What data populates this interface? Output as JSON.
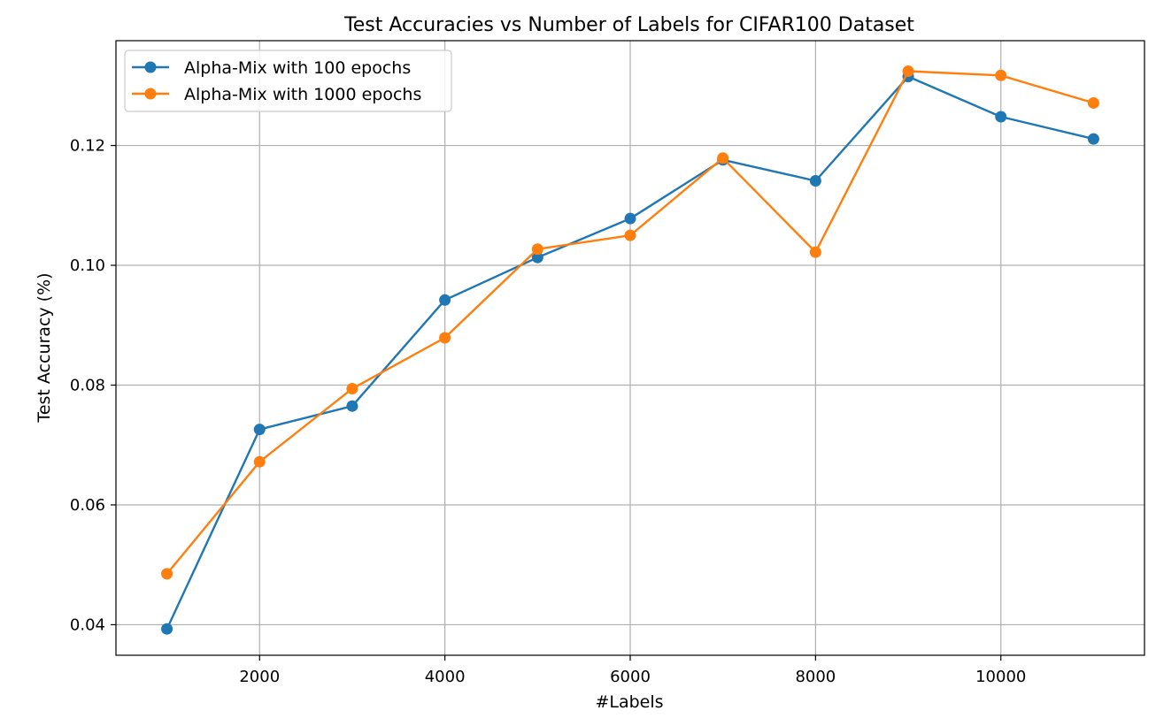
{
  "chart_data": {
    "type": "line",
    "title": "Test Accuracies vs Number of Labels for CIFAR100 Dataset",
    "xlabel": "#Labels",
    "ylabel": "Test Accuracy (%)",
    "x": [
      1000,
      2000,
      3000,
      4000,
      5000,
      6000,
      7000,
      8000,
      9000,
      10000,
      11000
    ],
    "series": [
      {
        "name": "Alpha-Mix with 100 epochs",
        "color": "#1f77b4",
        "values": [
          0.0393,
          0.0726,
          0.0765,
          0.0942,
          0.1013,
          0.1078,
          0.1176,
          0.1141,
          0.1315,
          0.1248,
          0.1211
        ]
      },
      {
        "name": "Alpha-Mix with 1000 epochs",
        "color": "#ff7f0e",
        "values": [
          0.0485,
          0.0672,
          0.0794,
          0.0879,
          0.1027,
          0.105,
          0.1179,
          0.1022,
          0.1324,
          0.1317,
          0.1271
        ]
      }
    ],
    "xlim": [
      450,
      11550
    ],
    "ylim": [
      0.0349,
      0.1375
    ],
    "xticks": [
      2000,
      4000,
      6000,
      8000,
      10000
    ],
    "xtick_labels": [
      "2000",
      "4000",
      "6000",
      "8000",
      "10000"
    ],
    "yticks": [
      0.04,
      0.06,
      0.08,
      0.1,
      0.12
    ],
    "ytick_labels": [
      "0.04",
      "0.06",
      "0.08",
      "0.10",
      "0.12"
    ],
    "grid": true,
    "legend_position": "top-left"
  }
}
